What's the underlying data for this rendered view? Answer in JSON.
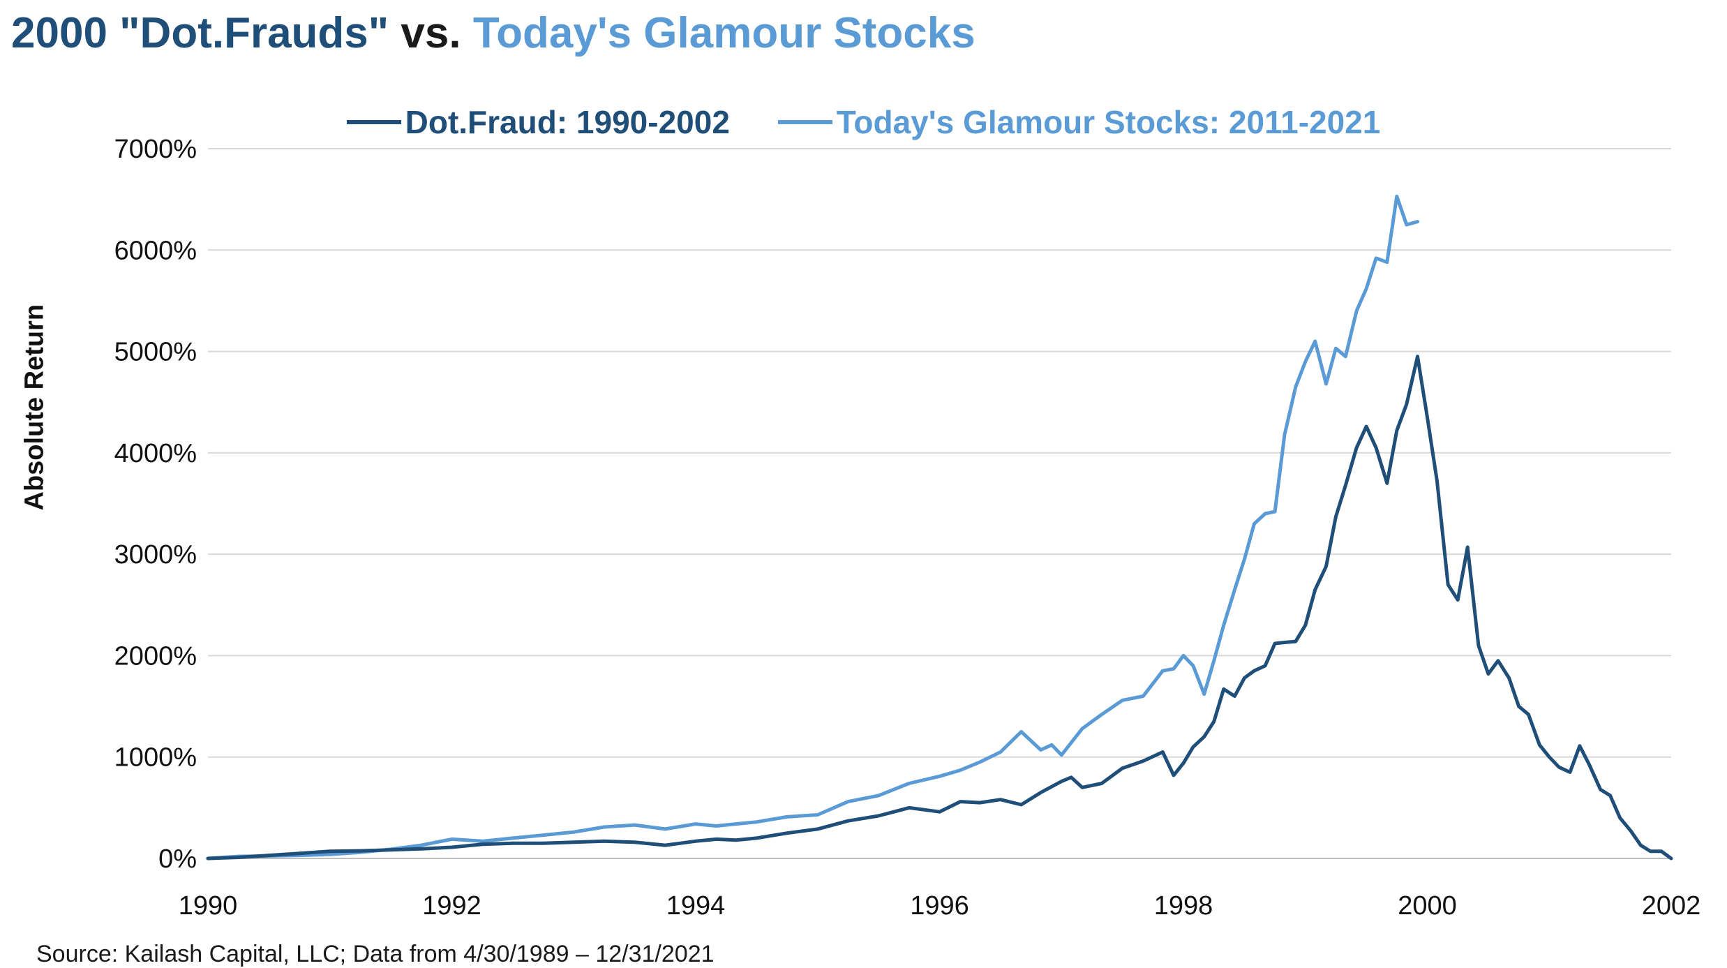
{
  "title": {
    "part1": "2000 \"Dot.Frauds\"",
    "part2": "vs.",
    "part3": "Today's Glamour Stocks"
  },
  "source": "Source: Kailash Capital, LLC; Data from 4/30/1989 – 12/31/2021",
  "colors": {
    "dark": "#1f4e79",
    "light": "#5b9bd5",
    "grid": "#d9d9d9"
  },
  "chart_data": {
    "type": "line",
    "title": "2000 \"Dot.Frauds\" vs. Today's Glamour Stocks",
    "xlabel": "",
    "ylabel": "Absolute Return",
    "xlim": [
      1990,
      2002
    ],
    "ylim": [
      0,
      7000
    ],
    "y_ticks": [
      0,
      1000,
      2000,
      3000,
      4000,
      5000,
      6000,
      7000
    ],
    "y_tick_labels": [
      "0%",
      "1000%",
      "2000%",
      "3000%",
      "4000%",
      "5000%",
      "6000%",
      "7000%"
    ],
    "x_ticks": [
      1990,
      1992,
      1994,
      1996,
      1998,
      2000,
      2002
    ],
    "x_tick_labels": [
      "1990",
      "1992",
      "1994",
      "1996",
      "1998",
      "2000",
      "2002"
    ],
    "grid": true,
    "legend_position": "top-center",
    "series": [
      {
        "name": "Dot.Fraud: 1990-2002",
        "color": "#1f4e79",
        "points": [
          [
            1990.0,
            0
          ],
          [
            1990.25,
            10
          ],
          [
            1990.5,
            30
          ],
          [
            1990.75,
            50
          ],
          [
            1991.0,
            70
          ],
          [
            1991.25,
            75
          ],
          [
            1991.5,
            85
          ],
          [
            1991.75,
            95
          ],
          [
            1992.0,
            110
          ],
          [
            1992.25,
            140
          ],
          [
            1992.5,
            150
          ],
          [
            1992.75,
            150
          ],
          [
            1993.0,
            160
          ],
          [
            1993.25,
            170
          ],
          [
            1993.5,
            160
          ],
          [
            1993.75,
            130
          ],
          [
            1994.0,
            170
          ],
          [
            1994.17,
            190
          ],
          [
            1994.33,
            180
          ],
          [
            1994.5,
            200
          ],
          [
            1994.75,
            250
          ],
          [
            1995.0,
            290
          ],
          [
            1995.25,
            370
          ],
          [
            1995.5,
            420
          ],
          [
            1995.75,
            500
          ],
          [
            1996.0,
            460
          ],
          [
            1996.17,
            560
          ],
          [
            1996.33,
            550
          ],
          [
            1996.5,
            580
          ],
          [
            1996.67,
            530
          ],
          [
            1996.83,
            650
          ],
          [
            1997.0,
            760
          ],
          [
            1997.08,
            800
          ],
          [
            1997.17,
            700
          ],
          [
            1997.33,
            740
          ],
          [
            1997.5,
            890
          ],
          [
            1997.67,
            960
          ],
          [
            1997.83,
            1050
          ],
          [
            1997.92,
            820
          ],
          [
            1998.0,
            940
          ],
          [
            1998.08,
            1100
          ],
          [
            1998.17,
            1200
          ],
          [
            1998.25,
            1350
          ],
          [
            1998.33,
            1670
          ],
          [
            1998.42,
            1600
          ],
          [
            1998.5,
            1780
          ],
          [
            1998.58,
            1850
          ],
          [
            1998.67,
            1900
          ],
          [
            1998.75,
            2120
          ],
          [
            1998.83,
            2130
          ],
          [
            1998.92,
            2140
          ],
          [
            1999.0,
            2300
          ],
          [
            1999.08,
            2650
          ],
          [
            1999.17,
            2880
          ],
          [
            1999.25,
            3370
          ],
          [
            1999.33,
            3680
          ],
          [
            1999.42,
            4050
          ],
          [
            1999.5,
            4260
          ],
          [
            1999.58,
            4050
          ],
          [
            1999.67,
            3700
          ],
          [
            1999.75,
            4220
          ],
          [
            1999.83,
            4480
          ],
          [
            1999.92,
            4950
          ],
          [
            2000.0,
            4350
          ],
          [
            2000.08,
            3720
          ],
          [
            2000.17,
            2700
          ],
          [
            2000.25,
            2550
          ],
          [
            2000.33,
            3070
          ],
          [
            2000.42,
            2100
          ],
          [
            2000.5,
            1820
          ],
          [
            2000.58,
            1950
          ],
          [
            2000.67,
            1780
          ],
          [
            2000.75,
            1500
          ],
          [
            2000.83,
            1420
          ],
          [
            2000.92,
            1120
          ],
          [
            2001.0,
            1000
          ],
          [
            2001.08,
            900
          ],
          [
            2001.17,
            850
          ],
          [
            2001.25,
            1110
          ],
          [
            2001.33,
            920
          ],
          [
            2001.42,
            680
          ],
          [
            2001.5,
            620
          ],
          [
            2001.58,
            400
          ],
          [
            2001.67,
            270
          ],
          [
            2001.75,
            130
          ],
          [
            2001.83,
            70
          ],
          [
            2001.92,
            70
          ],
          [
            2002.0,
            0
          ]
        ]
      },
      {
        "name": "Today's Glamour Stocks: 2011-2021",
        "color": "#5b9bd5",
        "points": [
          [
            1990.0,
            0
          ],
          [
            1990.25,
            20
          ],
          [
            1990.5,
            25
          ],
          [
            1990.75,
            30
          ],
          [
            1991.0,
            40
          ],
          [
            1991.25,
            60
          ],
          [
            1991.5,
            90
          ],
          [
            1991.75,
            130
          ],
          [
            1992.0,
            190
          ],
          [
            1992.25,
            170
          ],
          [
            1992.5,
            200
          ],
          [
            1992.75,
            230
          ],
          [
            1993.0,
            260
          ],
          [
            1993.25,
            310
          ],
          [
            1993.5,
            330
          ],
          [
            1993.75,
            290
          ],
          [
            1994.0,
            340
          ],
          [
            1994.17,
            320
          ],
          [
            1994.33,
            340
          ],
          [
            1994.5,
            360
          ],
          [
            1994.75,
            410
          ],
          [
            1995.0,
            430
          ],
          [
            1995.25,
            560
          ],
          [
            1995.5,
            620
          ],
          [
            1995.75,
            740
          ],
          [
            1996.0,
            810
          ],
          [
            1996.17,
            870
          ],
          [
            1996.33,
            950
          ],
          [
            1996.5,
            1050
          ],
          [
            1996.67,
            1250
          ],
          [
            1996.83,
            1070
          ],
          [
            1996.92,
            1120
          ],
          [
            1997.0,
            1020
          ],
          [
            1997.17,
            1280
          ],
          [
            1997.33,
            1420
          ],
          [
            1997.5,
            1560
          ],
          [
            1997.67,
            1600
          ],
          [
            1997.83,
            1850
          ],
          [
            1997.92,
            1870
          ],
          [
            1998.0,
            2000
          ],
          [
            1998.08,
            1900
          ],
          [
            1998.17,
            1620
          ],
          [
            1998.25,
            1950
          ],
          [
            1998.33,
            2300
          ],
          [
            1998.42,
            2650
          ],
          [
            1998.5,
            2950
          ],
          [
            1998.58,
            3300
          ],
          [
            1998.67,
            3400
          ],
          [
            1998.75,
            3420
          ],
          [
            1998.83,
            4180
          ],
          [
            1998.92,
            4650
          ],
          [
            1999.0,
            4900
          ],
          [
            1999.08,
            5100
          ],
          [
            1999.17,
            4680
          ],
          [
            1999.25,
            5030
          ],
          [
            1999.33,
            4950
          ],
          [
            1999.42,
            5400
          ],
          [
            1999.5,
            5620
          ],
          [
            1999.58,
            5920
          ],
          [
            1999.67,
            5880
          ],
          [
            1999.75,
            6530
          ],
          [
            1999.83,
            6250
          ],
          [
            1999.92,
            6280
          ]
        ]
      }
    ]
  }
}
